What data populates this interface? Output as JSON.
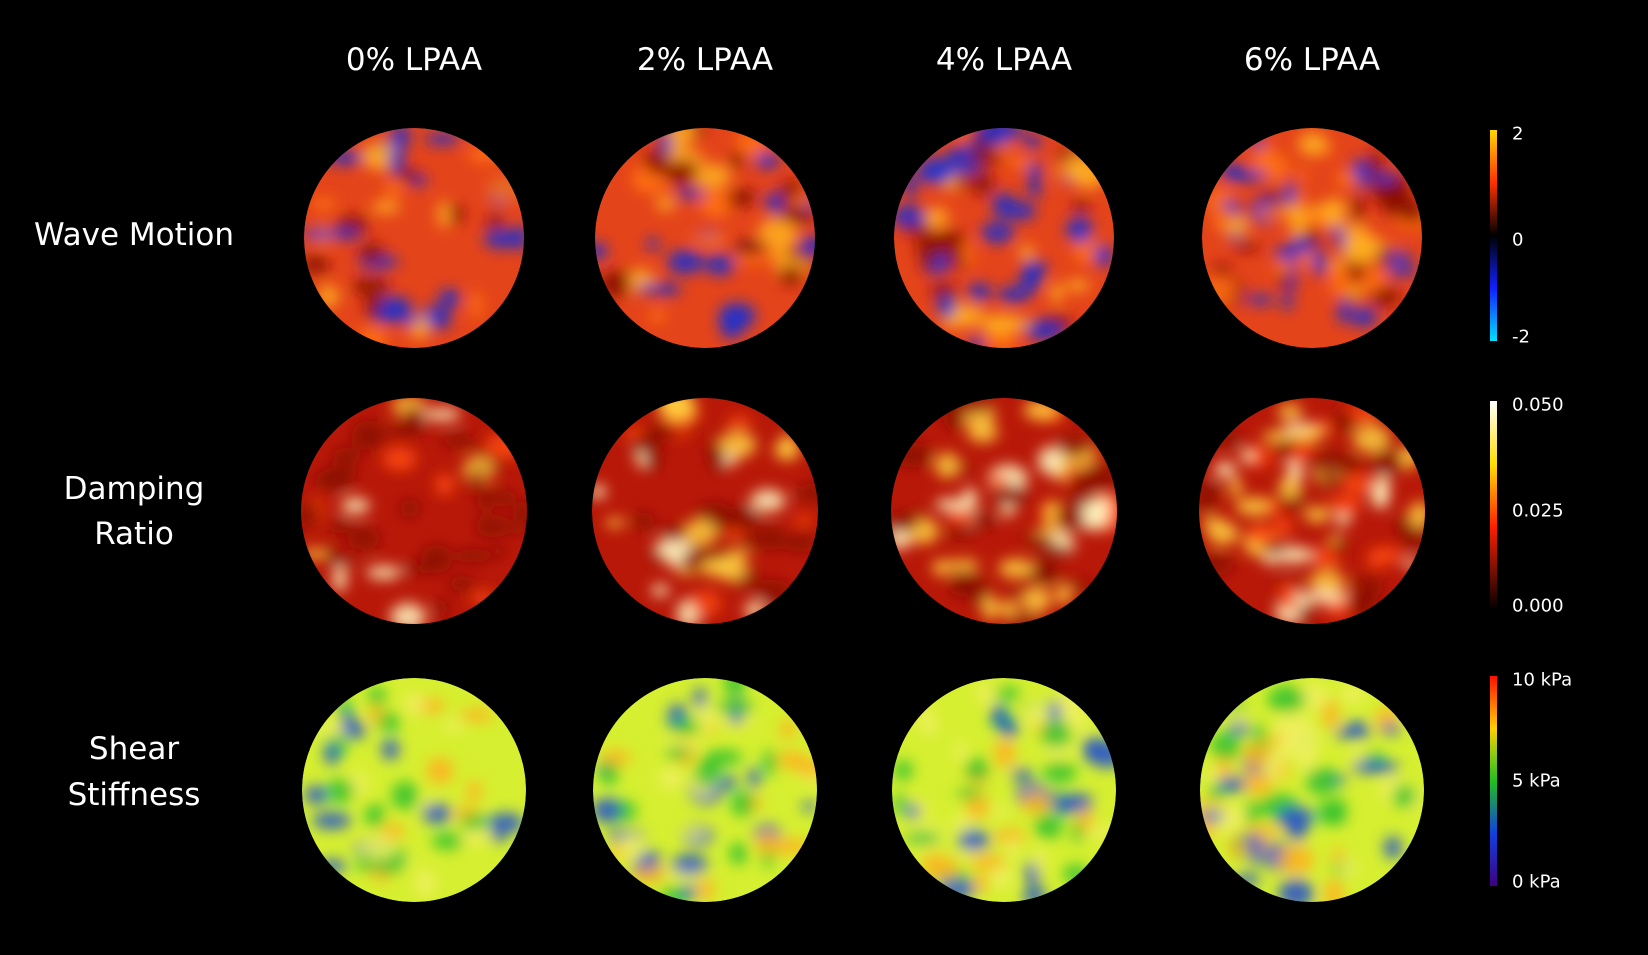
{
  "columns": [
    "0% LPAA",
    "2% LPAA",
    "4% LPAA",
    "6% LPAA"
  ],
  "rows": [
    {
      "label": [
        "Wave Motion"
      ],
      "colorbar": [
        "2",
        "0",
        "-2"
      ]
    },
    {
      "label": [
        "Damping",
        "Ratio"
      ],
      "colorbar": [
        "0.050",
        "0.025",
        "0.000"
      ]
    },
    {
      "label": [
        "Shear",
        "Stiffness"
      ],
      "colorbar": [
        "10 kPa",
        "5 kPa",
        "0 kPa"
      ]
    }
  ]
}
